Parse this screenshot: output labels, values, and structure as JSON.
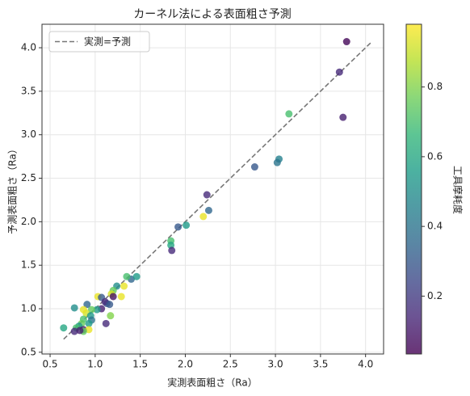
{
  "chart_data": {
    "type": "scatter",
    "title": "カーネル法による表面粗さ予測",
    "xlabel": "実測表面粗さ（Ra）",
    "ylabel": "予測表面粗さ（Ra）",
    "colorbar_label": "工具摩耗度",
    "xlim": [
      0.41,
      4.2
    ],
    "ylim": [
      0.48,
      4.27
    ],
    "xticks": [
      0.5,
      1.0,
      1.5,
      2.0,
      2.5,
      3.0,
      3.5,
      4.0
    ],
    "yticks": [
      0.5,
      1.0,
      1.5,
      2.0,
      2.5,
      3.0,
      3.5,
      4.0
    ],
    "clim": [
      0.034,
      0.98
    ],
    "cticks": [
      0.2,
      0.4,
      0.6,
      0.8
    ],
    "colormap": [
      "#440154",
      "#482878",
      "#3e4989",
      "#31688e",
      "#26828e",
      "#1f9e89",
      "#35b779",
      "#6ece58",
      "#b5de2b",
      "#fde725"
    ],
    "grid": true,
    "legend": "upper left",
    "reference_line": {
      "name": "実測=予測",
      "range": [
        0.65,
        4.07
      ],
      "color": "#777777"
    },
    "x": [
      3.79,
      3.71,
      3.75,
      3.15,
      3.04,
      3.02,
      2.77,
      2.2,
      2.26,
      2.24,
      2.01,
      1.92,
      1.84,
      1.84,
      1.85,
      1.4,
      1.46,
      1.35,
      1.32,
      1.24,
      1.2,
      1.18,
      1.2,
      1.29,
      1.03,
      1.07,
      1.13,
      1.11,
      1.16,
      1.07,
      1.02,
      0.96,
      0.91,
      0.77,
      0.9,
      0.87,
      0.95,
      0.96,
      0.93,
      1.17,
      1.12,
      0.87,
      0.85,
      0.82,
      0.79,
      0.87,
      0.93,
      0.65,
      0.77,
      0.87,
      0.83
    ],
    "y": [
      4.07,
      3.72,
      3.2,
      3.24,
      2.72,
      2.68,
      2.63,
      2.06,
      2.13,
      2.31,
      1.96,
      1.94,
      1.78,
      1.73,
      1.67,
      1.34,
      1.37,
      1.37,
      1.26,
      1.26,
      1.21,
      1.17,
      1.14,
      1.14,
      1.14,
      1.13,
      1.06,
      1.08,
      1.05,
      1.0,
      0.99,
      0.99,
      1.05,
      1.01,
      0.95,
      0.99,
      0.92,
      0.87,
      0.83,
      0.92,
      0.83,
      0.88,
      0.83,
      0.8,
      0.78,
      0.76,
      0.76,
      0.78,
      0.74,
      0.74,
      0.75
    ],
    "c": [
      0.05,
      0.15,
      0.12,
      0.7,
      0.45,
      0.4,
      0.3,
      0.95,
      0.35,
      0.15,
      0.55,
      0.3,
      0.7,
      0.6,
      0.15,
      0.35,
      0.55,
      0.7,
      0.95,
      0.5,
      0.75,
      0.92,
      0.08,
      0.95,
      0.95,
      0.3,
      0.3,
      0.15,
      0.3,
      0.12,
      0.55,
      0.75,
      0.35,
      0.5,
      0.92,
      0.95,
      0.55,
      0.4,
      0.55,
      0.8,
      0.15,
      0.7,
      0.75,
      0.55,
      0.7,
      0.12,
      0.95,
      0.6,
      0.15,
      0.75,
      0.12
    ]
  }
}
